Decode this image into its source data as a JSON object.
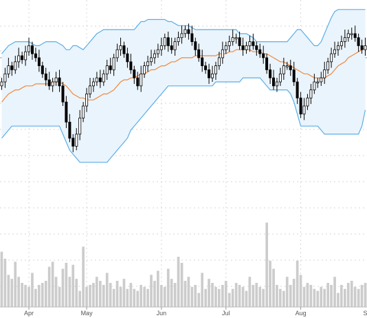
{
  "chart_data": {
    "type": "candlestick",
    "overlays": [
      "bollinger_bands",
      "moving_average"
    ],
    "grid": true,
    "x_labels": [
      {
        "label": "Apr",
        "index": 8
      },
      {
        "label": "May",
        "index": 25
      },
      {
        "label": "Jun",
        "index": 47
      },
      {
        "label": "Jul",
        "index": 66
      },
      {
        "label": "Aug",
        "index": 88
      },
      {
        "label": "Sep",
        "index": 108
      }
    ],
    "price_axis": {
      "min": 0,
      "max": 100
    },
    "volume_axis": {
      "min": 0,
      "max": 100
    },
    "reference_line": 74,
    "series": {
      "close": [
        62,
        66,
        70,
        68,
        72,
        75,
        73,
        77,
        80,
        76,
        74,
        70,
        66,
        63,
        60,
        62,
        64,
        60,
        52,
        42,
        34,
        30,
        36,
        44,
        50,
        56,
        60,
        62,
        64,
        62,
        66,
        70,
        68,
        74,
        78,
        80,
        76,
        72,
        68,
        64,
        60,
        66,
        70,
        72,
        74,
        76,
        78,
        80,
        84,
        80,
        78,
        82,
        84,
        86,
        88,
        86,
        82,
        78,
        74,
        70,
        68,
        64,
        66,
        70,
        74,
        78,
        80,
        82,
        84,
        84,
        80,
        78,
        80,
        82,
        80,
        78,
        76,
        74,
        68,
        64,
        60,
        62,
        66,
        70,
        70,
        68,
        62,
        54,
        46,
        50,
        54,
        58,
        62,
        62,
        64,
        68,
        72,
        76,
        78,
        80,
        82,
        84,
        86,
        86,
        84,
        80,
        78,
        80
      ],
      "bb_upper": [
        76,
        78,
        80,
        81,
        82,
        82,
        82,
        82,
        82,
        81,
        80,
        80,
        81,
        82,
        82,
        82,
        82,
        81,
        80,
        78,
        78,
        80,
        80,
        79,
        78,
        80,
        82,
        84,
        86,
        87,
        88,
        88,
        88,
        88,
        88,
        88,
        88,
        88,
        88,
        88,
        90,
        92,
        92,
        93,
        93,
        93,
        93,
        93,
        93,
        92,
        92,
        91,
        90,
        90,
        90,
        90,
        89,
        88,
        88,
        88,
        88,
        88,
        88,
        88,
        88,
        88,
        88,
        88,
        88,
        88,
        86,
        86,
        86,
        85,
        84,
        82,
        82,
        82,
        82,
        82,
        82,
        82,
        82,
        82,
        82,
        84,
        86,
        88,
        88,
        86,
        84,
        82,
        80,
        80,
        82,
        86,
        90,
        94,
        97,
        98,
        98,
        98,
        98,
        98,
        98,
        98,
        98,
        98
      ],
      "bb_middle": [
        52,
        54,
        56,
        57,
        58,
        58,
        59,
        60,
        60,
        60,
        61,
        61,
        61,
        61,
        61,
        62,
        62,
        62,
        61,
        60,
        58,
        56,
        55,
        54,
        54,
        53,
        53,
        53,
        54,
        55,
        56,
        56,
        57,
        58,
        60,
        62,
        63,
        63,
        64,
        64,
        65,
        66,
        66,
        67,
        68,
        68,
        69,
        70,
        70,
        71,
        72,
        72,
        73,
        74,
        74,
        74,
        74,
        75,
        75,
        75,
        75,
        75,
        75,
        75,
        76,
        76,
        76,
        77,
        77,
        78,
        78,
        78,
        78,
        78,
        77,
        77,
        77,
        76,
        76,
        75,
        74,
        73,
        72,
        72,
        71,
        70,
        69,
        68,
        67,
        66,
        66,
        65,
        64,
        64,
        64,
        64,
        65,
        66,
        68,
        70,
        71,
        72,
        74,
        75,
        76,
        77,
        78,
        79
      ],
      "bb_lower": [
        34,
        36,
        38,
        40,
        40,
        40,
        40,
        40,
        40,
        40,
        40,
        40,
        40,
        40,
        40,
        40,
        40,
        40,
        36,
        32,
        28,
        26,
        24,
        22,
        22,
        22,
        22,
        22,
        22,
        22,
        22,
        22,
        24,
        26,
        28,
        30,
        32,
        34,
        38,
        40,
        42,
        44,
        46,
        48,
        50,
        52,
        54,
        56,
        58,
        60,
        60,
        60,
        60,
        60,
        60,
        60,
        60,
        60,
        60,
        60,
        60,
        60,
        60,
        62,
        62,
        62,
        62,
        62,
        62,
        62,
        62,
        64,
        64,
        64,
        64,
        64,
        64,
        62,
        60,
        58,
        58,
        58,
        58,
        58,
        58,
        56,
        52,
        46,
        40,
        40,
        40,
        40,
        40,
        40,
        38,
        36,
        36,
        36,
        36,
        36,
        36,
        36,
        36,
        36,
        36,
        36,
        40,
        48
      ],
      "volume": [
        55,
        48,
        32,
        28,
        45,
        30,
        24,
        22,
        20,
        34,
        18,
        22,
        24,
        26,
        40,
        45,
        30,
        20,
        38,
        44,
        30,
        42,
        28,
        16,
        60,
        20,
        22,
        24,
        30,
        26,
        22,
        34,
        24,
        18,
        26,
        20,
        28,
        18,
        24,
        18,
        16,
        22,
        20,
        18,
        32,
        26,
        36,
        22,
        20,
        38,
        28,
        24,
        50,
        44,
        26,
        30,
        20,
        22,
        14,
        34,
        18,
        28,
        24,
        20,
        18,
        22,
        26,
        14,
        18,
        24,
        22,
        20,
        16,
        30,
        22,
        24,
        20,
        18,
        84,
        46,
        38,
        22,
        18,
        16,
        30,
        22,
        28,
        46,
        32,
        20,
        24,
        22,
        18,
        16,
        20,
        18,
        24,
        22,
        30,
        14,
        22,
        18,
        24,
        26,
        20,
        18,
        22,
        24
      ]
    },
    "colors": {
      "candle": "#000000",
      "band": "#5aaee6",
      "band_fill": "#eaf4fc",
      "ma": "#f0883c",
      "volume": "#cccccc",
      "grid": "#d6d6d6",
      "reference": "#9a9a9a"
    }
  }
}
